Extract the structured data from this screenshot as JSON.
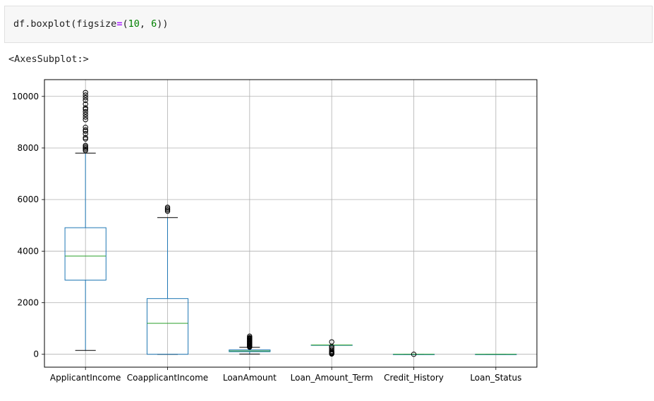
{
  "cell": {
    "code_fn": "df.boxplot(figsize",
    "code_eq": "=",
    "code_open": "(",
    "code_num1": "10",
    "code_sep": ", ",
    "code_num2": "6",
    "code_close": "))"
  },
  "output": {
    "repr": "<AxesSubplot:>"
  },
  "colors": {
    "box": "#1f77b4",
    "median": "#2ca02c",
    "whisker": "#1f77b4",
    "cap": "#000000",
    "grid": "#b0b0b0"
  },
  "chart_data": {
    "type": "box",
    "ylim": [
      -500,
      10650
    ],
    "yticks": [
      0,
      2000,
      4000,
      6000,
      8000,
      10000
    ],
    "grid": true,
    "categories": [
      "ApplicantIncome",
      "CoapplicantIncome",
      "LoanAmount",
      "Loan_Amount_Term",
      "Credit_History",
      "Loan_Status"
    ],
    "boxes": [
      {
        "q1": 2877,
        "median": 3812,
        "q3": 4908,
        "whislo": 150,
        "whishi": 7800,
        "fliers": [
          7900,
          7950,
          8000,
          8050,
          8100,
          8350,
          8400,
          8550,
          8650,
          8700,
          8800,
          9100,
          9200,
          9300,
          9400,
          9500,
          9550,
          9700,
          9850,
          9950,
          10050,
          10150
        ]
      },
      {
        "q1": 0,
        "median": 1200,
        "q3": 2160,
        "whislo": 0,
        "whishi": 5300,
        "fliers": [
          5550,
          5600,
          5650,
          5700
        ]
      },
      {
        "q1": 100,
        "median": 130,
        "q3": 170,
        "whislo": 9,
        "whishi": 270,
        "fliers": [
          280,
          300,
          320,
          350,
          380,
          400,
          420,
          450,
          480,
          500,
          520,
          550,
          580,
          600,
          620,
          650,
          700
        ]
      },
      {
        "q1": 360,
        "median": 360,
        "q3": 360,
        "whislo": 360,
        "whishi": 360,
        "fliers": [
          12,
          36,
          60,
          84,
          120,
          180,
          240,
          300,
          480
        ]
      },
      {
        "q1": 1,
        "median": 1,
        "q3": 1,
        "whislo": 1,
        "whishi": 1,
        "fliers": [
          0
        ]
      },
      {
        "q1": 0,
        "median": 1,
        "q3": 1,
        "whislo": 0,
        "whishi": 1,
        "fliers": []
      }
    ]
  }
}
